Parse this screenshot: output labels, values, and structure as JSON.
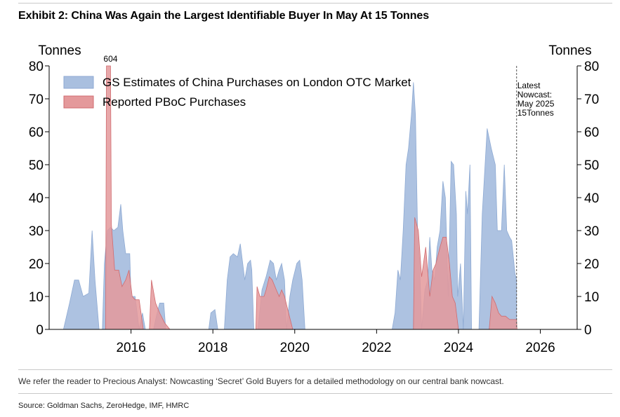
{
  "header": {
    "title": "Exhibit 2: China Was Again the Largest Identifiable Buyer In May At 15 Tonnes"
  },
  "footer": {
    "note": "We refer the reader to Precious Analyst: Nowcasting ‘Secret’ Gold Buyers for a detailed methodology on our central bank nowcast.",
    "source": "Source: Goldman Sachs, ZeroHedge, IMF, HMRC"
  },
  "colors": {
    "gs": "#a9bfdf",
    "gs_line": "#8eaad3",
    "pboc": "#e4999b",
    "pboc_line": "#d06b6f"
  },
  "chart_data": {
    "type": "area",
    "ylabel_left": "Tonnes",
    "ylabel_right": "Tonnes",
    "ylim": [
      0,
      80
    ],
    "y_ticks": [
      0,
      10,
      20,
      30,
      40,
      50,
      60,
      70,
      80
    ],
    "xlim": [
      2014.0,
      2026.9
    ],
    "x_ticks": [
      2016,
      2018,
      2020,
      2022,
      2024,
      2026
    ],
    "x_tick_labels": [
      "2016",
      "2018",
      "2020",
      "2022",
      "2024",
      "2026"
    ],
    "legend": [
      "GS Estimates of China Purchases on London OTC Market",
      "Reported PBoC Purchases"
    ],
    "legend_position": "top-left",
    "annotations": {
      "off_scale_label": "604",
      "off_scale_x": 2015.5,
      "nowcast_x": 2025.42,
      "nowcast_lines": [
        "Latest",
        "Nowcast:",
        "May 2025",
        "15Tonnes"
      ]
    },
    "series": [
      {
        "name": "GS Estimates of China Purchases on London OTC Market",
        "points": [
          [
            2014.35,
            0
          ],
          [
            2014.5,
            8
          ],
          [
            2014.62,
            15
          ],
          [
            2014.72,
            15
          ],
          [
            2014.83,
            10
          ],
          [
            2014.97,
            11
          ],
          [
            2015.05,
            30
          ],
          [
            2015.12,
            15
          ],
          [
            2015.22,
            0
          ],
          [
            2015.3,
            0
          ],
          [
            2015.35,
            20
          ],
          [
            2015.42,
            30
          ],
          [
            2015.5,
            31
          ],
          [
            2015.58,
            30
          ],
          [
            2015.68,
            31
          ],
          [
            2015.75,
            38
          ],
          [
            2015.8,
            30
          ],
          [
            2015.87,
            23
          ],
          [
            2015.97,
            23
          ],
          [
            2016.0,
            10
          ],
          [
            2016.1,
            10
          ],
          [
            2016.2,
            0
          ],
          [
            2016.28,
            5
          ],
          [
            2016.35,
            0
          ],
          [
            2016.55,
            0
          ],
          [
            2016.62,
            4
          ],
          [
            2016.7,
            8
          ],
          [
            2016.8,
            8
          ],
          [
            2016.85,
            0
          ],
          [
            2017.9,
            0
          ],
          [
            2017.95,
            5
          ],
          [
            2018.05,
            6
          ],
          [
            2018.12,
            0
          ],
          [
            2018.28,
            0
          ],
          [
            2018.35,
            15
          ],
          [
            2018.42,
            22
          ],
          [
            2018.5,
            23
          ],
          [
            2018.6,
            22
          ],
          [
            2018.67,
            26
          ],
          [
            2018.73,
            20
          ],
          [
            2018.78,
            15
          ],
          [
            2018.85,
            20
          ],
          [
            2018.92,
            21
          ],
          [
            2018.95,
            18
          ],
          [
            2019.0,
            0
          ],
          [
            2019.1,
            0
          ],
          [
            2019.2,
            12
          ],
          [
            2019.3,
            16
          ],
          [
            2019.4,
            21
          ],
          [
            2019.48,
            20
          ],
          [
            2019.55,
            15
          ],
          [
            2019.62,
            18
          ],
          [
            2019.68,
            20
          ],
          [
            2019.75,
            15
          ],
          [
            2019.8,
            0
          ],
          [
            2019.88,
            10
          ],
          [
            2019.95,
            15
          ],
          [
            2020.05,
            20
          ],
          [
            2020.12,
            21
          ],
          [
            2020.18,
            15
          ],
          [
            2020.25,
            0
          ],
          [
            2022.38,
            0
          ],
          [
            2022.45,
            5
          ],
          [
            2022.52,
            18
          ],
          [
            2022.58,
            15
          ],
          [
            2022.65,
            30
          ],
          [
            2022.72,
            50
          ],
          [
            2022.78,
            55
          ],
          [
            2022.85,
            65
          ],
          [
            2022.9,
            75
          ],
          [
            2022.95,
            65
          ],
          [
            2023.0,
            30
          ],
          [
            2023.05,
            20
          ],
          [
            2023.1,
            0
          ],
          [
            2023.18,
            12
          ],
          [
            2023.25,
            15
          ],
          [
            2023.3,
            28
          ],
          [
            2023.35,
            18
          ],
          [
            2023.42,
            15
          ],
          [
            2023.48,
            25
          ],
          [
            2023.55,
            30
          ],
          [
            2023.62,
            45
          ],
          [
            2023.68,
            40
          ],
          [
            2023.75,
            10
          ],
          [
            2023.82,
            51
          ],
          [
            2023.88,
            50
          ],
          [
            2023.95,
            35
          ],
          [
            2023.98,
            10
          ],
          [
            2024.05,
            20
          ],
          [
            2024.12,
            0
          ],
          [
            2024.18,
            42
          ],
          [
            2024.22,
            35
          ],
          [
            2024.28,
            50
          ],
          [
            2024.32,
            0
          ],
          [
            2024.5,
            0
          ],
          [
            2024.58,
            35
          ],
          [
            2024.7,
            61
          ],
          [
            2024.8,
            55
          ],
          [
            2024.9,
            50
          ],
          [
            2024.95,
            30
          ],
          [
            2025.05,
            30
          ],
          [
            2025.12,
            50
          ],
          [
            2025.18,
            30
          ],
          [
            2025.25,
            28
          ],
          [
            2025.3,
            27
          ],
          [
            2025.38,
            17
          ],
          [
            2025.42,
            15
          ]
        ]
      },
      {
        "name": "Reported PBoC Purchases",
        "points": [
          [
            2015.38,
            0
          ],
          [
            2015.4,
            80
          ],
          [
            2015.5,
            80
          ],
          [
            2015.52,
            32
          ],
          [
            2015.6,
            18
          ],
          [
            2015.7,
            18
          ],
          [
            2015.78,
            13
          ],
          [
            2015.87,
            15
          ],
          [
            2015.95,
            18
          ],
          [
            2016.03,
            10
          ],
          [
            2016.1,
            9
          ],
          [
            2016.2,
            9
          ],
          [
            2016.3,
            0
          ],
          [
            2016.45,
            0
          ],
          [
            2016.5,
            15
          ],
          [
            2016.6,
            8
          ],
          [
            2016.7,
            5
          ],
          [
            2016.82,
            2
          ],
          [
            2016.95,
            0
          ],
          [
            2019.05,
            0
          ],
          [
            2019.08,
            13
          ],
          [
            2019.15,
            10
          ],
          [
            2019.25,
            10
          ],
          [
            2019.3,
            12
          ],
          [
            2019.38,
            16
          ],
          [
            2019.45,
            15
          ],
          [
            2019.55,
            12
          ],
          [
            2019.62,
            10
          ],
          [
            2019.68,
            12
          ],
          [
            2019.75,
            10
          ],
          [
            2019.85,
            5
          ],
          [
            2019.95,
            0
          ],
          [
            2022.9,
            0
          ],
          [
            2022.93,
            34
          ],
          [
            2023.02,
            30
          ],
          [
            2023.1,
            16
          ],
          [
            2023.2,
            25
          ],
          [
            2023.3,
            10
          ],
          [
            2023.38,
            18
          ],
          [
            2023.45,
            20
          ],
          [
            2023.55,
            25
          ],
          [
            2023.62,
            28
          ],
          [
            2023.7,
            28
          ],
          [
            2023.78,
            20
          ],
          [
            2023.85,
            10
          ],
          [
            2023.92,
            8
          ],
          [
            2024.0,
            0
          ],
          [
            2024.75,
            0
          ],
          [
            2024.82,
            10
          ],
          [
            2024.9,
            8
          ],
          [
            2024.98,
            5
          ],
          [
            2025.05,
            4
          ],
          [
            2025.15,
            4
          ],
          [
            2025.25,
            3
          ],
          [
            2025.35,
            3
          ],
          [
            2025.42,
            3
          ],
          [
            2025.43,
            0
          ]
        ]
      }
    ]
  }
}
